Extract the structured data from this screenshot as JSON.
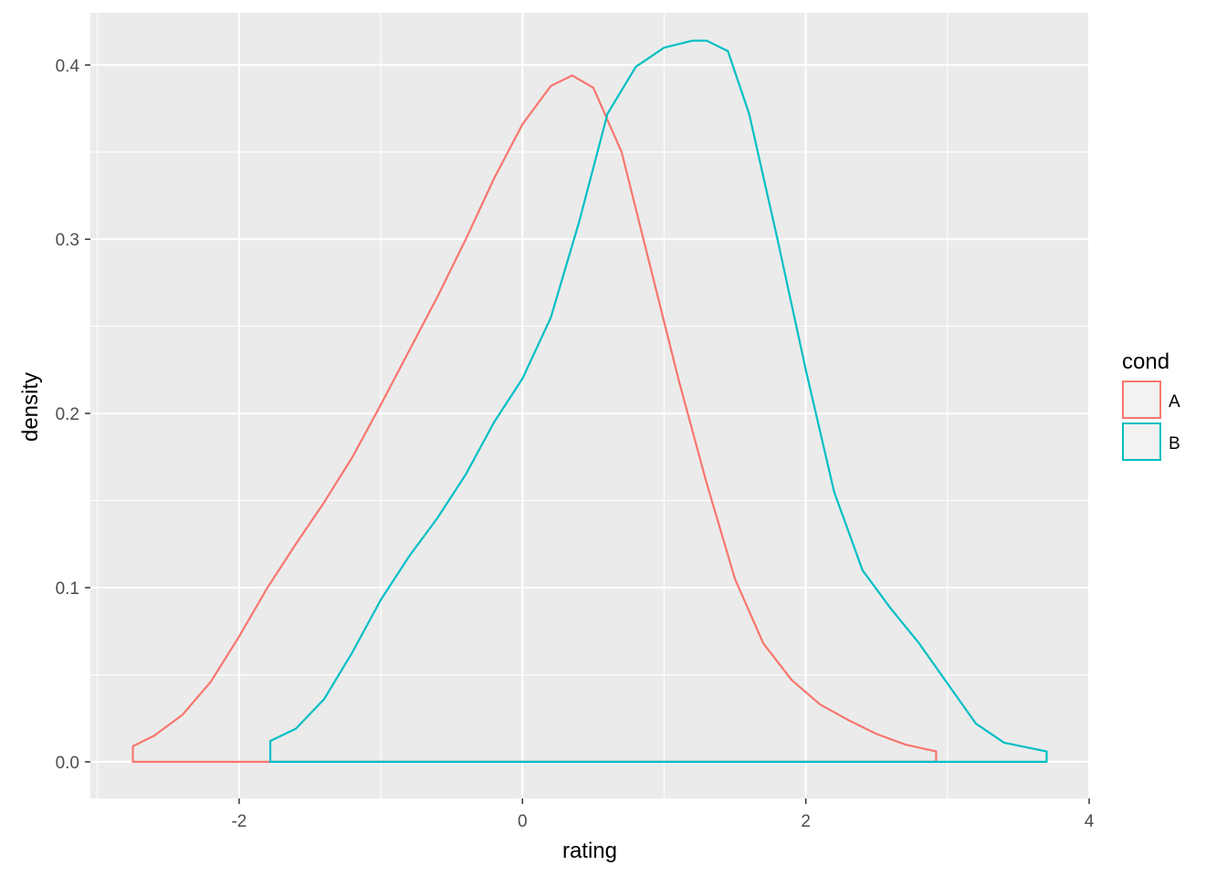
{
  "chart_data": {
    "type": "area",
    "geom": "density",
    "xlabel": "rating",
    "ylabel": "density",
    "xlim": [
      -3.05,
      4.0
    ],
    "ylim": [
      -0.021,
      0.43
    ],
    "x_ticks": [
      -2,
      0,
      2,
      4
    ],
    "y_ticks": [
      0.0,
      0.1,
      0.2,
      0.3,
      0.4
    ],
    "x_tick_labels": [
      "-2",
      "0",
      "2",
      "4"
    ],
    "y_tick_labels": [
      "0.0",
      "0.1",
      "0.2",
      "0.3",
      "0.4"
    ],
    "grid": true,
    "fill": "none",
    "legend": {
      "title": "cond",
      "position": "right"
    },
    "series": [
      {
        "name": "A",
        "color": "#F8766D",
        "x": [
          -2.75,
          -2.6,
          -2.4,
          -2.2,
          -2.0,
          -1.8,
          -1.6,
          -1.4,
          -1.2,
          -1.0,
          -0.8,
          -0.6,
          -0.4,
          -0.2,
          0.0,
          0.2,
          0.35,
          0.5,
          0.7,
          0.9,
          1.1,
          1.3,
          1.5,
          1.7,
          1.9,
          2.1,
          2.3,
          2.5,
          2.7,
          2.92
        ],
        "y": [
          0.009,
          0.015,
          0.027,
          0.046,
          0.072,
          0.1,
          0.125,
          0.149,
          0.175,
          0.205,
          0.236,
          0.267,
          0.3,
          0.335,
          0.366,
          0.388,
          0.394,
          0.387,
          0.35,
          0.285,
          0.22,
          0.16,
          0.105,
          0.068,
          0.047,
          0.033,
          0.024,
          0.016,
          0.01,
          0.006
        ]
      },
      {
        "name": "B",
        "color": "#00BFC4",
        "x": [
          -1.78,
          -1.6,
          -1.4,
          -1.2,
          -1.0,
          -0.8,
          -0.6,
          -0.4,
          -0.2,
          0.0,
          0.2,
          0.4,
          0.6,
          0.8,
          1.0,
          1.2,
          1.3,
          1.45,
          1.6,
          1.8,
          2.0,
          2.2,
          2.4,
          2.6,
          2.8,
          3.0,
          3.2,
          3.4,
          3.7
        ],
        "y": [
          0.012,
          0.019,
          0.036,
          0.063,
          0.093,
          0.118,
          0.14,
          0.165,
          0.195,
          0.22,
          0.255,
          0.31,
          0.372,
          0.399,
          0.41,
          0.414,
          0.414,
          0.408,
          0.372,
          0.3,
          0.225,
          0.155,
          0.11,
          0.088,
          0.068,
          0.045,
          0.022,
          0.011,
          0.006
        ]
      }
    ]
  }
}
